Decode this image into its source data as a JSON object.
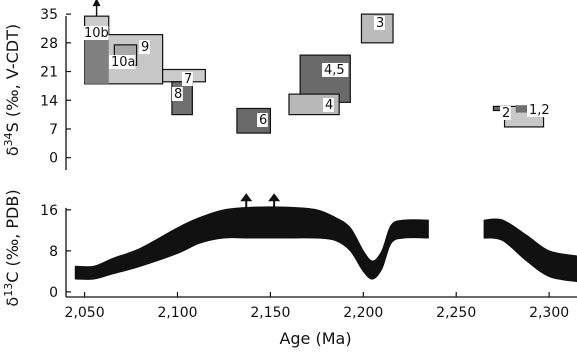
{
  "chart_data": [
    {
      "type": "box",
      "ylabel": "δ34S (‰, V-CDT)",
      "ylim": [
        -3,
        36
      ],
      "yticks": [
        0,
        7,
        14,
        21,
        28,
        35
      ],
      "boxes": [
        {
          "label": "10b",
          "x": [
            2050,
            2063
          ],
          "y": [
            29,
            34.5
          ],
          "fill": "#cccccc",
          "arrow_up": true
        },
        {
          "label": "9",
          "x": [
            2050,
            2092
          ],
          "y": [
            18,
            30
          ],
          "fill": "#c8c8c8"
        },
        {
          "label": "",
          "x": [
            2050,
            2063
          ],
          "y": [
            18,
            29
          ],
          "fill": "#808080"
        },
        {
          "label": "10a",
          "x": [
            2066,
            2078
          ],
          "y": [
            22.5,
            27.5
          ],
          "fill": "#a8a8a8"
        },
        {
          "label": "7",
          "x": [
            2092,
            2115
          ],
          "y": [
            18.5,
            21.5
          ],
          "fill": "#cccccc"
        },
        {
          "label": "8",
          "x": [
            2097,
            2108
          ],
          "y": [
            10.5,
            18.5
          ],
          "fill": "#707070"
        },
        {
          "label": "6",
          "x": [
            2132,
            2150
          ],
          "y": [
            6,
            12
          ],
          "fill": "#6a6a6a"
        },
        {
          "label": "4,5",
          "x": [
            2166,
            2193
          ],
          "y": [
            13.5,
            25
          ],
          "fill": "#6a6a6a"
        },
        {
          "label": "4",
          "x": [
            2160,
            2187
          ],
          "y": [
            10.5,
            15.5
          ],
          "fill": "#b8b8b8"
        },
        {
          "label": "3",
          "x": [
            2199,
            2216
          ],
          "y": [
            28,
            35
          ],
          "fill": "#bbbbbb"
        },
        {
          "label": "2",
          "x": [
            2270,
            2276
          ],
          "y": [
            11.5,
            12.5
          ],
          "fill": "#6a6a6a"
        },
        {
          "label": "1,2",
          "x": [
            2276,
            2297
          ],
          "y": [
            7.5,
            12.5
          ],
          "fill": "#c8c8c8"
        },
        {
          "label": "",
          "x": [
            2282,
            2294
          ],
          "y": [
            11,
            12.8
          ],
          "fill": "#707070"
        }
      ]
    },
    {
      "type": "area",
      "xlabel": "Age (Ma)",
      "ylabel": "δ13C (‰, PDB)",
      "xlim": [
        2040,
        2315
      ],
      "ylim": [
        -1,
        18.5
      ],
      "xticks": [
        2050,
        2100,
        2150,
        2200,
        2250,
        2300
      ],
      "xtick_labels": [
        "2,050",
        "2,100",
        "2,150",
        "2,200",
        "2,250",
        "2,300"
      ],
      "yticks": [
        0,
        8,
        16
      ],
      "band_segments": [
        [
          {
            "x": 2045,
            "lo": 2.5,
            "hi": 5.0
          },
          {
            "x": 2055,
            "lo": 2.5,
            "hi": 5.0
          },
          {
            "x": 2065,
            "lo": 3.5,
            "hi": 6.5
          },
          {
            "x": 2080,
            "lo": 5.0,
            "hi": 8.5
          },
          {
            "x": 2100,
            "lo": 7.5,
            "hi": 12.5
          },
          {
            "x": 2112,
            "lo": 9.5,
            "hi": 14.5
          },
          {
            "x": 2125,
            "lo": 10.5,
            "hi": 16.0
          },
          {
            "x": 2140,
            "lo": 10.5,
            "hi": 16.5
          },
          {
            "x": 2160,
            "lo": 10.5,
            "hi": 16.5
          },
          {
            "x": 2175,
            "lo": 10.5,
            "hi": 16.0
          },
          {
            "x": 2185,
            "lo": 10.0,
            "hi": 14.5
          },
          {
            "x": 2193,
            "lo": 8.0,
            "hi": 12.5
          },
          {
            "x": 2200,
            "lo": 4.0,
            "hi": 8.0
          },
          {
            "x": 2205,
            "lo": 2.5,
            "hi": 6.0
          },
          {
            "x": 2210,
            "lo": 4.5,
            "hi": 8.0
          },
          {
            "x": 2215,
            "lo": 9.5,
            "hi": 13.0
          },
          {
            "x": 2222,
            "lo": 10.5,
            "hi": 14.0
          },
          {
            "x": 2235,
            "lo": 10.5,
            "hi": 14.0
          }
        ],
        [
          {
            "x": 2265,
            "lo": 10.5,
            "hi": 14.0
          },
          {
            "x": 2275,
            "lo": 10.0,
            "hi": 14.0
          },
          {
            "x": 2288,
            "lo": 6.0,
            "hi": 11.0
          },
          {
            "x": 2300,
            "lo": 3.0,
            "hi": 8.0
          },
          {
            "x": 2315,
            "lo": 2.0,
            "hi": 7.0
          }
        ]
      ],
      "arrows_up_at": [
        2137,
        2152
      ]
    }
  ]
}
